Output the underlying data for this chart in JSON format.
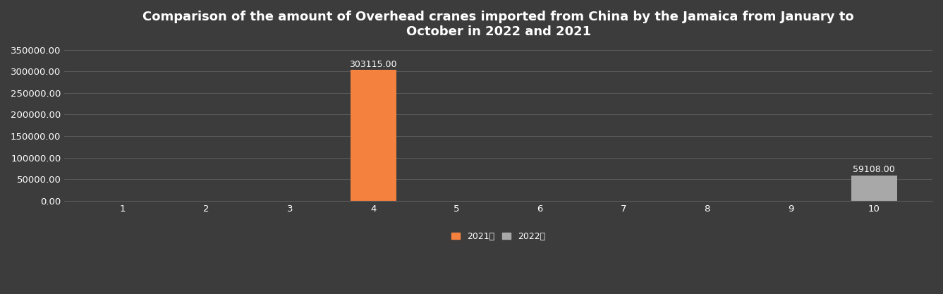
{
  "title": "Comparison of the amount of Overhead cranes imported from China by the Jamaica from January to\nOctober in 2022 and 2021",
  "months": [
    1,
    2,
    3,
    4,
    5,
    6,
    7,
    8,
    9,
    10
  ],
  "values_2021": [
    0,
    0,
    0,
    303115.0,
    0,
    0,
    0,
    0,
    0,
    0
  ],
  "values_2022": [
    0,
    0,
    0,
    0,
    0,
    0,
    0,
    0,
    0,
    59108.0
  ],
  "color_2021": "#F5813F",
  "color_2022": "#A8A8A8",
  "background_color": "#3C3C3C",
  "text_color": "#FFFFFF",
  "grid_color": "#5A5A5A",
  "ylim": [
    0,
    350000
  ],
  "yticks": [
    0,
    50000,
    100000,
    150000,
    200000,
    250000,
    300000,
    350000
  ],
  "bar_width": 0.55,
  "legend_2021": "2021年",
  "legend_2022": "2022年",
  "annotation_2021": "303115.00",
  "annotation_2022": "59108.00"
}
